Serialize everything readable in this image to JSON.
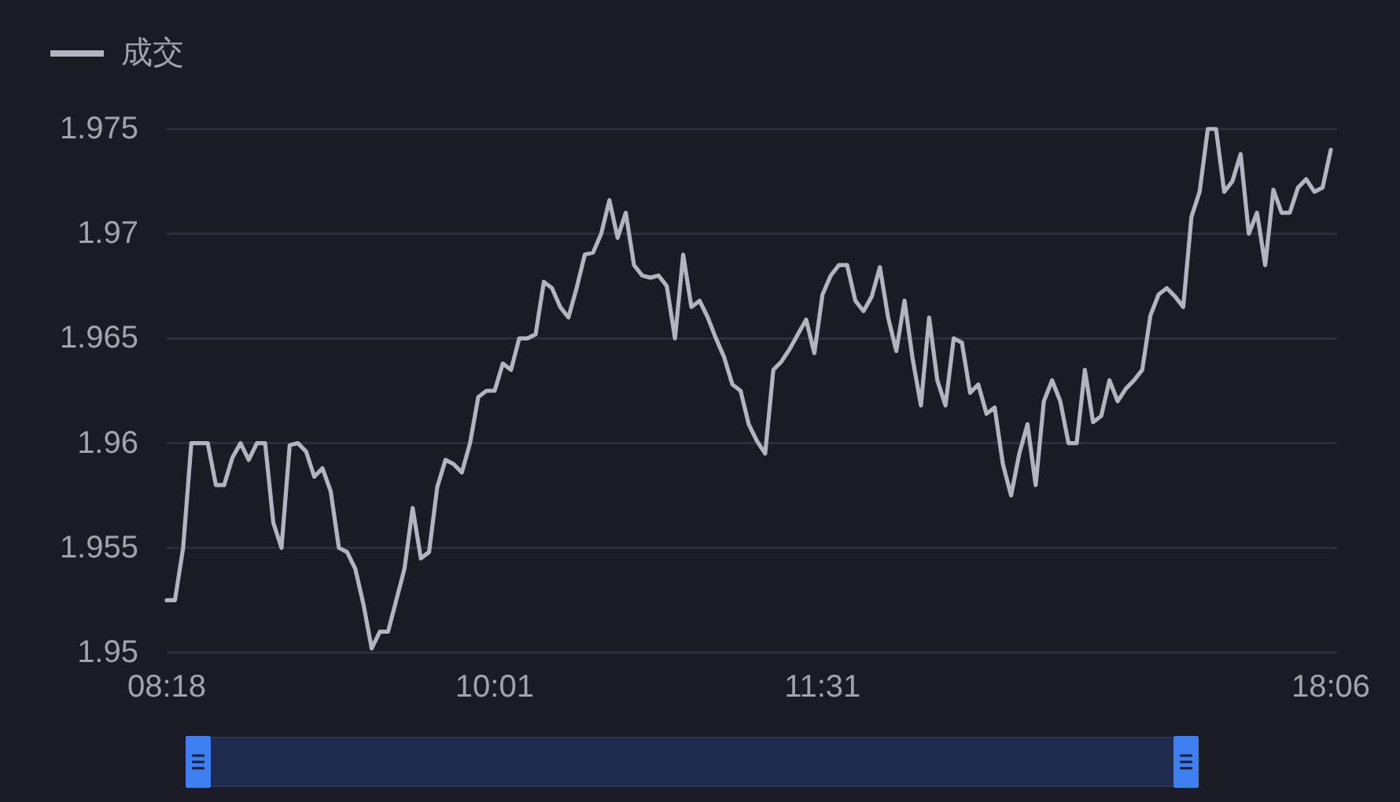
{
  "chart_data": {
    "type": "line",
    "categories": [
      "08:18",
      null,
      null,
      null,
      null,
      null,
      null,
      null,
      null,
      null,
      null,
      null,
      null,
      null,
      null,
      null,
      null,
      null,
      null,
      null,
      null,
      null,
      null,
      null,
      null,
      null,
      null,
      null,
      null,
      null,
      null,
      null,
      null,
      null,
      null,
      null,
      null,
      null,
      null,
      null,
      "10:01",
      null,
      null,
      null,
      null,
      null,
      null,
      null,
      null,
      null,
      null,
      null,
      null,
      null,
      null,
      null,
      null,
      null,
      null,
      null,
      null,
      null,
      null,
      null,
      null,
      null,
      null,
      null,
      null,
      null,
      null,
      null,
      null,
      null,
      null,
      null,
      null,
      null,
      null,
      null,
      "11:31",
      null,
      null,
      null,
      null,
      null,
      null,
      null,
      null,
      null,
      null,
      null,
      null,
      null,
      null,
      null,
      null,
      null,
      null,
      null,
      null,
      null,
      null,
      null,
      null,
      null,
      null,
      null,
      null,
      null,
      null,
      null,
      null,
      null,
      null,
      null,
      null,
      null,
      null,
      null,
      null,
      null,
      null,
      null,
      null,
      null,
      null,
      null,
      null,
      null,
      null,
      null,
      null,
      null,
      null,
      null,
      null,
      null,
      null,
      null,
      null,
      null,
      "18:06"
    ],
    "series": [
      {
        "name": "成交",
        "color": "#b4b3c0",
        "values": [
          1.9525,
          1.9525,
          1.955,
          1.96,
          1.96,
          1.96,
          1.958,
          1.958,
          1.9593,
          1.96,
          1.9592,
          1.96,
          1.96,
          1.9562,
          1.955,
          1.9599,
          1.96,
          1.9596,
          1.9584,
          1.9588,
          1.9577,
          1.955,
          1.9548,
          1.954,
          1.9523,
          1.9502,
          1.951,
          1.951,
          1.9525,
          1.954,
          1.9569,
          1.9545,
          1.9548,
          1.9579,
          1.9592,
          1.959,
          1.9586,
          1.96,
          1.9622,
          1.9625,
          1.9625,
          1.9638,
          1.9635,
          1.965,
          1.965,
          1.9652,
          1.9677,
          1.9674,
          1.9665,
          1.966,
          1.9674,
          1.969,
          1.9691,
          1.97,
          1.9716,
          1.9698,
          1.971,
          1.9685,
          1.968,
          1.9679,
          1.968,
          1.9675,
          1.965,
          1.969,
          1.9665,
          1.9668,
          1.966,
          1.965,
          1.9641,
          1.9628,
          1.9625,
          1.9609,
          1.9601,
          1.9595,
          1.9635,
          1.9639,
          1.9645,
          1.9652,
          1.9659,
          1.9643,
          1.9671,
          1.968,
          1.9685,
          1.9685,
          1.9668,
          1.9663,
          1.967,
          1.9684,
          1.966,
          1.9644,
          1.9668,
          1.964,
          1.9618,
          1.966,
          1.963,
          1.9618,
          1.965,
          1.9648,
          1.9624,
          1.9628,
          1.9614,
          1.9617,
          1.959,
          1.9575,
          1.9595,
          1.9609,
          1.958,
          1.962,
          1.963,
          1.962,
          1.96,
          1.96,
          1.9635,
          1.961,
          1.9613,
          1.963,
          1.962,
          1.9626,
          1.963,
          1.9635,
          1.9661,
          1.9671,
          1.9674,
          1.967,
          1.9665,
          1.9708,
          1.972,
          1.975,
          1.975,
          1.972,
          1.9725,
          1.9738,
          1.97,
          1.971,
          1.9685,
          1.9721,
          1.971,
          1.971,
          1.9722,
          1.9726,
          1.972,
          1.9722,
          1.974
        ]
      }
    ],
    "ylim": [
      1.95,
      1.975
    ],
    "yticks": [
      1.95,
      1.955,
      1.96,
      1.965,
      1.97,
      1.975
    ],
    "grid": "y",
    "legend": "top left",
    "marker": "none",
    "line_style": "solid"
  }
}
